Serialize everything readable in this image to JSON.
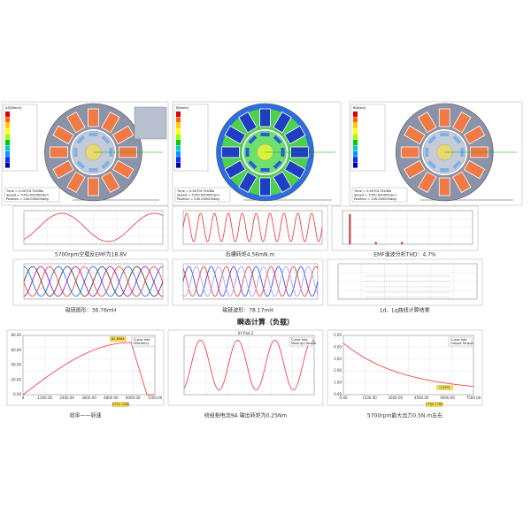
{
  "top_panels": [
    {
      "title": "AZ[Wb/m]",
      "time": "Time = 0.0070175438s",
      "speed": "Speed = 5700.000000rpm",
      "position": "Position = 240.000000deg"
    },
    {
      "title": "B[tesla]",
      "time": "Time = 0.0070175438s",
      "speed": "Speed = 5700.000000rpm",
      "position": "Position = 240.000000deg"
    },
    {
      "title": "B[tesla]",
      "time": "Time = 0.0070175438s",
      "speed": "Speed = 5700.000000rpm",
      "position": "Position = 240.000000deg"
    }
  ],
  "middle_captions": [
    "5700rpm空载反EMF为18.8V",
    "齿槽转矩4.56mN.m",
    "EMF谐波分析THD：4.7%",
    "磁链图形：36.76mH",
    "磁链波形：78.17mH",
    "Ld、Lq曲线计算结果"
  ],
  "section_title": "瞬态计算（负载）",
  "bottom_charts": [
    {
      "legend": [
        "Curve Info",
        "Efficiency"
      ],
      "yticks": [
        "0.00",
        "20.00",
        "40.00",
        "60.00",
        "80.00"
      ],
      "xticks": [
        "0",
        "1200.00",
        "2400.00",
        "3600.00",
        "4800.00",
        "6000.00",
        "7200.00"
      ],
      "callouts": [
        "82.8564",
        "5724.1266"
      ]
    },
    {
      "title": "XY Plot 2",
      "legend": [
        "Curve Info",
        "Moving1.Torque"
      ],
      "yticks": [],
      "xticks": [],
      "callouts": []
    },
    {
      "legend": [
        "Curve Info",
        "Output Torque"
      ],
      "yticks": [
        "0.00",
        "1.00",
        "2.00",
        "3.00",
        "4.00",
        "5.00"
      ],
      "xticks": [
        "0.00",
        "1500.00",
        "3000.00",
        "4500.00",
        "6000.00",
        "7500.00"
      ],
      "callouts": [
        "0.5291",
        "5700.1789"
      ]
    }
  ],
  "bottom_captions": [
    "效率——转速",
    "绕组相电流9A 输出转矩为0.25Nm",
    "5700rpm最大出力0.5N.m左右"
  ]
}
